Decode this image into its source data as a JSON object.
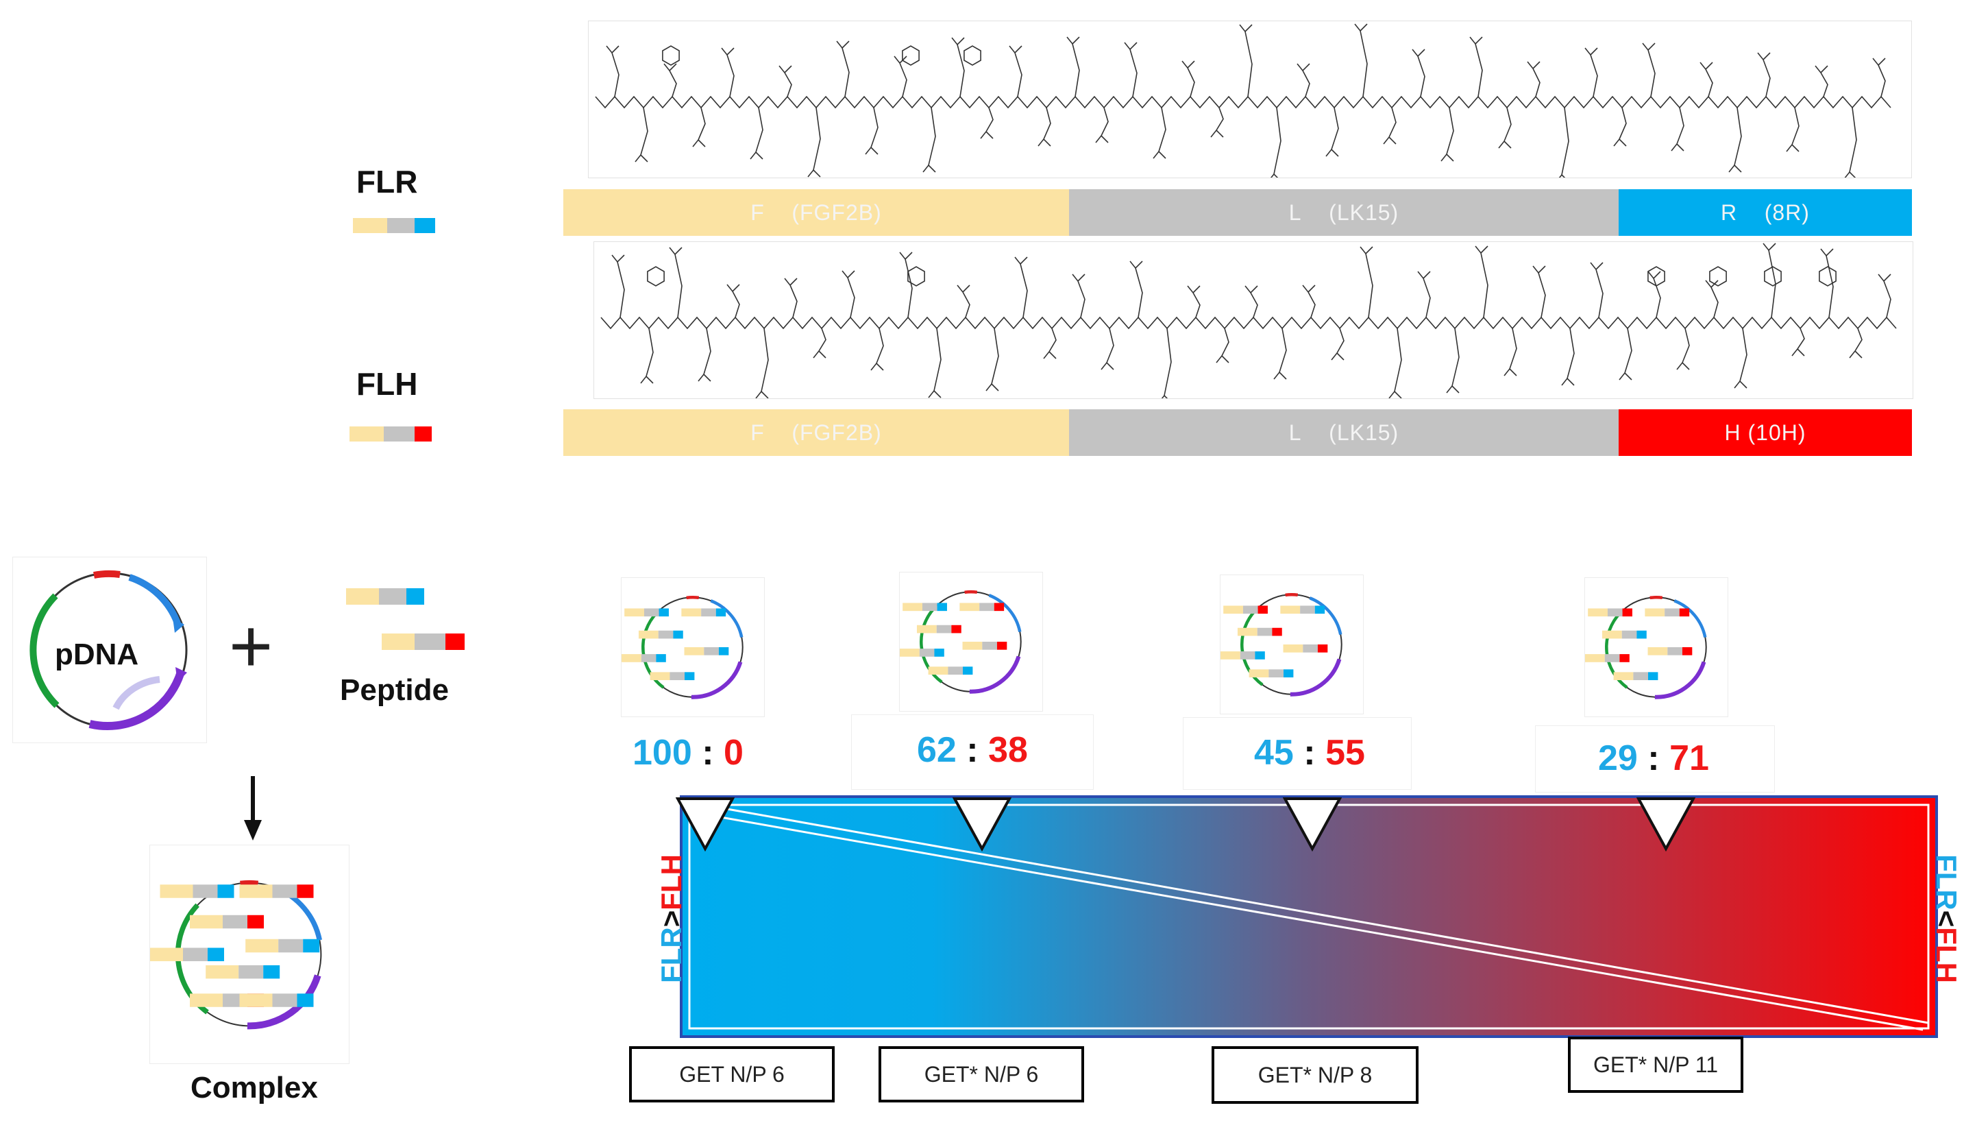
{
  "peptides": {
    "flr": {
      "label": "FLR",
      "segments": [
        {
          "letter": "F",
          "name": "(FGF2B)"
        },
        {
          "letter": "L",
          "name": "(LK15)"
        },
        {
          "letter": "R",
          "name": "(8R)"
        }
      ]
    },
    "flh": {
      "label": "FLH",
      "segments": [
        {
          "letter": "F",
          "name": "(FGF2B)"
        },
        {
          "letter": "L",
          "name": "(LK15)"
        },
        {
          "letter": "H",
          "name": "(10H)"
        }
      ]
    }
  },
  "workflow": {
    "pdna_label": "pDNA",
    "plus": "+",
    "peptide_label": "Peptide",
    "complex_label": "Complex"
  },
  "ratios": [
    {
      "flr": "100",
      "sep": ":",
      "flh": "0"
    },
    {
      "flr": "62",
      "sep": ":",
      "flh": "38"
    },
    {
      "flr": "45",
      "sep": ":",
      "flh": "55"
    },
    {
      "flr": "29",
      "sep": ":",
      "flh": "71"
    }
  ],
  "gradient": {
    "left_label_a": "FLR",
    "left_label_op": ">",
    "left_label_b": "FLH",
    "right_label_a": "FLR",
    "right_label_op": "<",
    "right_label_b": "FLH"
  },
  "conditions": [
    "GET N/P 6",
    "GET* N/P 6",
    "GET* N/P 8",
    "GET* N/P 11"
  ],
  "colors": {
    "f_segment": "#fbe3a3",
    "l_segment": "#c3c3c3",
    "r_segment": "#00adee",
    "h_segment": "#ff0000",
    "flr_text": "#1ea8e6",
    "flh_text": "#f21818",
    "pdna_green": "#1a9e3a",
    "pdna_blue": "#2a86e0",
    "pdna_purple": "#7b2fd0",
    "pdna_red": "#e02020"
  }
}
